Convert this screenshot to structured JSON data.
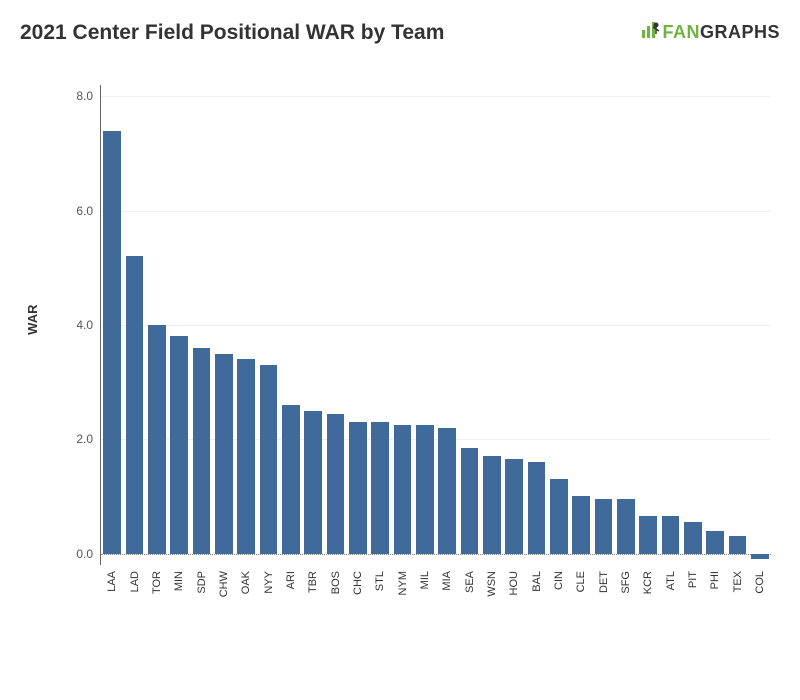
{
  "title": "2021 Center Field Positional WAR by Team",
  "logo": {
    "fan": "FAN",
    "graphs": "GRAPHS"
  },
  "chart": {
    "type": "bar",
    "y_axis_title": "WAR",
    "ylim": [
      -0.2,
      8.2
    ],
    "ytick_min": 0.0,
    "ytick_max": 8.0,
    "ytick_step": 2.0,
    "tick_decimals": 1,
    "categories": [
      "LAA",
      "LAD",
      "TOR",
      "MIN",
      "SDP",
      "CHW",
      "OAK",
      "NYY",
      "ARI",
      "TBR",
      "BOS",
      "CHC",
      "STL",
      "NYM",
      "MIL",
      "MIA",
      "SEA",
      "WSN",
      "HOU",
      "BAL",
      "CIN",
      "CLE",
      "DET",
      "SFG",
      "KCR",
      "ATL",
      "PIT",
      "PHI",
      "TEX",
      "COL"
    ],
    "values": [
      7.4,
      5.2,
      4.0,
      3.8,
      3.6,
      3.5,
      3.4,
      3.3,
      2.6,
      2.5,
      2.45,
      2.3,
      2.3,
      2.25,
      2.25,
      2.2,
      1.85,
      1.7,
      1.65,
      1.6,
      1.3,
      1.0,
      0.95,
      0.95,
      0.65,
      0.65,
      0.55,
      0.4,
      0.3,
      -0.1
    ],
    "bar_color": "#3f6a9a",
    "grid_color": "#eeeeee",
    "zero_line_color": "#888888",
    "axis_label_color": "#555555",
    "background_color": "#ffffff",
    "bar_width_ratio": 0.8,
    "label_fontsize": 11,
    "tick_fontsize": 12,
    "title_fontsize": 21
  }
}
